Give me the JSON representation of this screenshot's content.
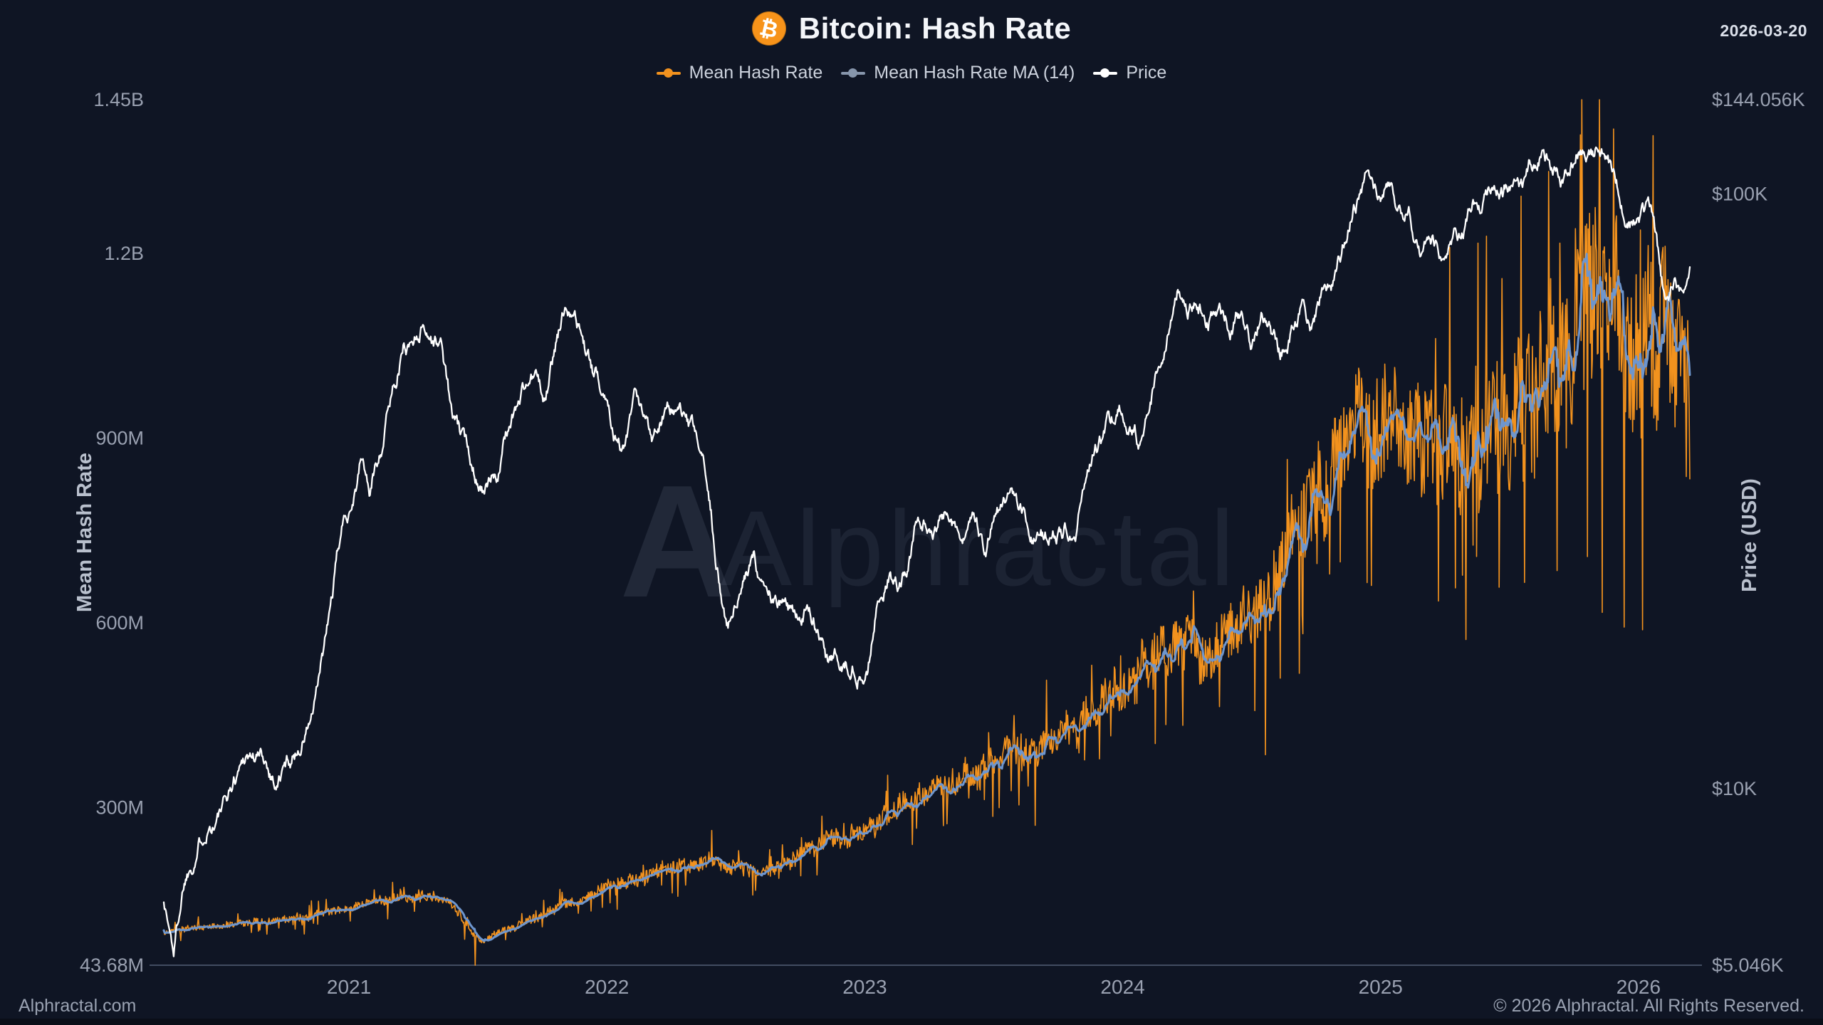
{
  "header": {
    "title": "Bitcoin: Hash Rate",
    "date": "2026-03-20",
    "btc_symbol": "₿"
  },
  "legend": {
    "position": "top-center",
    "items": [
      {
        "label": "Mean Hash Rate",
        "marker_color": "#F2921E",
        "line_color": "#F2921E"
      },
      {
        "label": "Mean Hash Rate MA (14)",
        "marker_color": "#8796AC",
        "line_color": "#6E96CE"
      },
      {
        "label": "Price",
        "marker_color": "#FFFFFF",
        "line_color": "#FFFFFF"
      }
    ]
  },
  "watermark": {
    "logo": "A",
    "text": "Alphractal"
  },
  "footer": {
    "left": "Alphractal.com",
    "right": "© 2026 Alphractal. All Rights Reserved."
  },
  "colors": {
    "background": "#0f1524",
    "hash_rate": "#F2921E",
    "hash_rate_ma": "#6E96CE",
    "price": "#FFFFFF",
    "tick_label": "#99a0b0",
    "axis_title": "#b9c0cd",
    "axis_line": "#424c61",
    "watermark": "rgba(162,177,208,0.09)"
  },
  "chart_data": {
    "type": "line",
    "title": "Bitcoin: Hash Rate",
    "x_unit": "decimal_year",
    "grid": false,
    "x_axis": {
      "min": 2020.282,
      "max": 2026.199,
      "ticks": [
        {
          "label": "2021",
          "value": 2021
        },
        {
          "label": "2022",
          "value": 2022
        },
        {
          "label": "2023",
          "value": 2023
        },
        {
          "label": "2024",
          "value": 2024
        },
        {
          "label": "2025",
          "value": 2025
        },
        {
          "label": "2026",
          "value": 2026
        }
      ]
    },
    "left_axis": {
      "title": "Mean Hash Rate",
      "scale": "linear",
      "min": 0.04368,
      "max": 1.45,
      "unit_note": "values in billions (B)",
      "ticks": [
        {
          "label": "1.45B",
          "value": 1.45
        },
        {
          "label": "1.2B",
          "value": 1.2
        },
        {
          "label": "900M",
          "value": 0.9
        },
        {
          "label": "600M",
          "value": 0.6
        },
        {
          "label": "300M",
          "value": 0.3
        },
        {
          "label": "43.68M",
          "value": 0.04368
        }
      ]
    },
    "right_axis": {
      "title": "Price (USD)",
      "scale": "log",
      "min": 5046,
      "max": 144056,
      "ticks": [
        {
          "label": "$144.056K",
          "value": 144056
        },
        {
          "label": "$100K",
          "value": 100000
        },
        {
          "label": "$10K",
          "value": 10000
        },
        {
          "label": "$5.046K",
          "value": 5046
        }
      ]
    },
    "series": [
      {
        "name": "Price",
        "axis": "right",
        "color": "#FFFFFF",
        "width": 2.3,
        "interp": "log",
        "noise": {
          "seed": 1337,
          "step": 0.048,
          "revert": 0.93
        },
        "clamp": [
          5046,
          144056
        ],
        "anchors": [
          [
            2020.28,
            6600
          ],
          [
            2020.32,
            5350
          ],
          [
            2020.36,
            7100
          ],
          [
            2020.45,
            9100
          ],
          [
            2020.52,
            9400
          ],
          [
            2020.6,
            11600
          ],
          [
            2020.67,
            11300
          ],
          [
            2020.72,
            10400
          ],
          [
            2020.8,
            11700
          ],
          [
            2020.87,
            13800
          ],
          [
            2020.92,
            18500
          ],
          [
            2020.97,
            26500
          ],
          [
            2021.02,
            32000
          ],
          [
            2021.05,
            36500
          ],
          [
            2021.08,
            31500
          ],
          [
            2021.13,
            39000
          ],
          [
            2021.17,
            47500
          ],
          [
            2021.21,
            55500
          ],
          [
            2021.25,
            57500
          ],
          [
            2021.29,
            62500
          ],
          [
            2021.32,
            58500
          ],
          [
            2021.36,
            56000
          ],
          [
            2021.4,
            42000
          ],
          [
            2021.45,
            36500
          ],
          [
            2021.5,
            34000
          ],
          [
            2021.54,
            32000
          ],
          [
            2021.58,
            34500
          ],
          [
            2021.63,
            42500
          ],
          [
            2021.68,
            47500
          ],
          [
            2021.72,
            49500
          ],
          [
            2021.76,
            44000
          ],
          [
            2021.8,
            54000
          ],
          [
            2021.84,
            64500
          ],
          [
            2021.87,
            67000
          ],
          [
            2021.91,
            57500
          ],
          [
            2021.95,
            49000
          ],
          [
            2021.99,
            47500
          ],
          [
            2022.03,
            41500
          ],
          [
            2022.07,
            37500
          ],
          [
            2022.11,
            43500
          ],
          [
            2022.14,
            39500
          ],
          [
            2022.18,
            38500
          ],
          [
            2022.23,
            45500
          ],
          [
            2022.28,
            42500
          ],
          [
            2022.32,
            39000
          ],
          [
            2022.36,
            36000
          ],
          [
            2022.4,
            29500
          ],
          [
            2022.44,
            22000
          ],
          [
            2022.47,
            19200
          ],
          [
            2022.52,
            21200
          ],
          [
            2022.57,
            23800
          ],
          [
            2022.62,
            21500
          ],
          [
            2022.67,
            20000
          ],
          [
            2022.72,
            19300
          ],
          [
            2022.77,
            20200
          ],
          [
            2022.82,
            19000
          ],
          [
            2022.86,
            15900
          ],
          [
            2022.91,
            16500
          ],
          [
            2022.96,
            16800
          ],
          [
            2023.01,
            16800
          ],
          [
            2023.05,
            21000
          ],
          [
            2023.09,
            23200
          ],
          [
            2023.13,
            21900
          ],
          [
            2023.17,
            25000
          ],
          [
            2023.21,
            28200
          ],
          [
            2023.25,
            27500
          ],
          [
            2023.29,
            28500
          ],
          [
            2023.33,
            29900
          ],
          [
            2023.38,
            26900
          ],
          [
            2023.43,
            26300
          ],
          [
            2023.47,
            25300
          ],
          [
            2023.51,
            30300
          ],
          [
            2023.55,
            30000
          ],
          [
            2023.6,
            29100
          ],
          [
            2023.64,
            25900
          ],
          [
            2023.68,
            26100
          ],
          [
            2023.73,
            26800
          ],
          [
            2023.78,
            27800
          ],
          [
            2023.82,
            29500
          ],
          [
            2023.86,
            34600
          ],
          [
            2023.9,
            36800
          ],
          [
            2023.94,
            41500
          ],
          [
            2023.99,
            43000
          ],
          [
            2024.03,
            42800
          ],
          [
            2024.06,
            39800
          ],
          [
            2024.1,
            47500
          ],
          [
            2024.14,
            52000
          ],
          [
            2024.18,
            61500
          ],
          [
            2024.21,
            71000
          ],
          [
            2024.25,
            67500
          ],
          [
            2024.29,
            69500
          ],
          [
            2024.33,
            63500
          ],
          [
            2024.37,
            66800
          ],
          [
            2024.42,
            61800
          ],
          [
            2024.46,
            64500
          ],
          [
            2024.5,
            57500
          ],
          [
            2024.54,
            66500
          ],
          [
            2024.58,
            59000
          ],
          [
            2024.61,
            53800
          ],
          [
            2024.65,
            60500
          ],
          [
            2024.69,
            63800
          ],
          [
            2024.73,
            60500
          ],
          [
            2024.77,
            67800
          ],
          [
            2024.81,
            66500
          ],
          [
            2024.84,
            75500
          ],
          [
            2024.88,
            90500
          ],
          [
            2024.91,
            97500
          ],
          [
            2024.95,
            106000
          ],
          [
            2024.99,
            95500
          ],
          [
            2025.03,
            102500
          ],
          [
            2025.07,
            97000
          ],
          [
            2025.11,
            95500
          ],
          [
            2025.15,
            84500
          ],
          [
            2025.19,
            87500
          ],
          [
            2025.23,
            82500
          ],
          [
            2025.27,
            85500
          ],
          [
            2025.31,
            88000
          ],
          [
            2025.35,
            94500
          ],
          [
            2025.39,
            97500
          ],
          [
            2025.43,
            104500
          ],
          [
            2025.47,
            103000
          ],
          [
            2025.51,
            108500
          ],
          [
            2025.55,
            101500
          ],
          [
            2025.58,
            111000
          ],
          [
            2025.62,
            118500
          ],
          [
            2025.66,
            113500
          ],
          [
            2025.7,
            110000
          ],
          [
            2025.73,
            117500
          ],
          [
            2025.76,
            123500
          ],
          [
            2025.79,
            118000
          ],
          [
            2025.82,
            114000
          ],
          [
            2025.85,
            120500
          ],
          [
            2025.88,
            116500
          ],
          [
            2025.91,
            104000
          ],
          [
            2025.94,
            96500
          ],
          [
            2025.97,
            90500
          ],
          [
            2026.0,
            92500
          ],
          [
            2026.03,
            94500
          ],
          [
            2026.06,
            88000
          ],
          [
            2026.09,
            71000
          ],
          [
            2026.12,
            67500
          ],
          [
            2026.14,
            71500
          ],
          [
            2026.16,
            66500
          ],
          [
            2026.18,
            68500
          ],
          [
            2026.2,
            73500
          ]
        ]
      },
      {
        "name": "Mean Hash Rate",
        "axis": "left",
        "color": "#F2921E",
        "width": 1.6,
        "interp": "linear",
        "noise": {
          "seed": 99,
          "spike_down_p": 0.035,
          "spike_up_p": 0.025
        },
        "clamp": [
          0.04368,
          1.45
        ],
        "forced_points": [
          [
            2021.49,
            0.04368
          ],
          [
            2025.78,
            1.45
          ]
        ],
        "amp_anchors": [
          [
            2020.28,
            0.045
          ],
          [
            2021.3,
            0.05
          ],
          [
            2021.6,
            0.06
          ],
          [
            2022.5,
            0.055
          ],
          [
            2023.5,
            0.065
          ],
          [
            2024.3,
            0.075
          ],
          [
            2024.8,
            0.095
          ],
          [
            2025.3,
            0.105
          ],
          [
            2025.8,
            0.125
          ],
          [
            2026.2,
            0.115
          ]
        ],
        "anchors": [
          [
            2020.28,
            0.098
          ],
          [
            2020.45,
            0.105
          ],
          [
            2020.6,
            0.112
          ],
          [
            2020.75,
            0.118
          ],
          [
            2020.9,
            0.128
          ],
          [
            2021.05,
            0.143
          ],
          [
            2021.2,
            0.152
          ],
          [
            2021.33,
            0.158
          ],
          [
            2021.4,
            0.14
          ],
          [
            2021.47,
            0.1
          ],
          [
            2021.52,
            0.082
          ],
          [
            2021.6,
            0.1
          ],
          [
            2021.7,
            0.118
          ],
          [
            2021.8,
            0.135
          ],
          [
            2021.9,
            0.152
          ],
          [
            2022.0,
            0.172
          ],
          [
            2022.1,
            0.183
          ],
          [
            2022.2,
            0.198
          ],
          [
            2022.3,
            0.205
          ],
          [
            2022.4,
            0.21
          ],
          [
            2022.5,
            0.205
          ],
          [
            2022.6,
            0.198
          ],
          [
            2022.7,
            0.212
          ],
          [
            2022.8,
            0.235
          ],
          [
            2022.9,
            0.248
          ],
          [
            2023.0,
            0.262
          ],
          [
            2023.1,
            0.288
          ],
          [
            2023.2,
            0.318
          ],
          [
            2023.3,
            0.338
          ],
          [
            2023.4,
            0.352
          ],
          [
            2023.5,
            0.372
          ],
          [
            2023.6,
            0.388
          ],
          [
            2023.7,
            0.402
          ],
          [
            2023.8,
            0.422
          ],
          [
            2023.9,
            0.452
          ],
          [
            2024.0,
            0.495
          ],
          [
            2024.1,
            0.525
          ],
          [
            2024.2,
            0.562
          ],
          [
            2024.28,
            0.578
          ],
          [
            2024.35,
            0.555
          ],
          [
            2024.42,
            0.585
          ],
          [
            2024.5,
            0.622
          ],
          [
            2024.6,
            0.672
          ],
          [
            2024.7,
            0.772
          ],
          [
            2024.8,
            0.862
          ],
          [
            2024.88,
            0.918
          ],
          [
            2024.95,
            0.882
          ],
          [
            2025.02,
            0.922
          ],
          [
            2025.1,
            0.942
          ],
          [
            2025.18,
            0.902
          ],
          [
            2025.26,
            0.882
          ],
          [
            2025.34,
            0.902
          ],
          [
            2025.42,
            0.932
          ],
          [
            2025.5,
            0.952
          ],
          [
            2025.58,
            0.972
          ],
          [
            2025.66,
            1.002
          ],
          [
            2025.74,
            1.072
          ],
          [
            2025.8,
            1.142
          ],
          [
            2025.85,
            1.122
          ],
          [
            2025.9,
            1.052
          ],
          [
            2025.95,
            1.022
          ],
          [
            2026.0,
            1.012
          ],
          [
            2026.05,
            1.032
          ],
          [
            2026.1,
            1.062
          ],
          [
            2026.14,
            1.032
          ],
          [
            2026.18,
            0.982
          ],
          [
            2026.2,
            0.952
          ]
        ]
      },
      {
        "name": "Mean Hash Rate MA (14)",
        "axis": "left",
        "color": "#6E96CE",
        "width": 3,
        "derived": "trailing_mean_14_of_hash_rate"
      }
    ]
  }
}
